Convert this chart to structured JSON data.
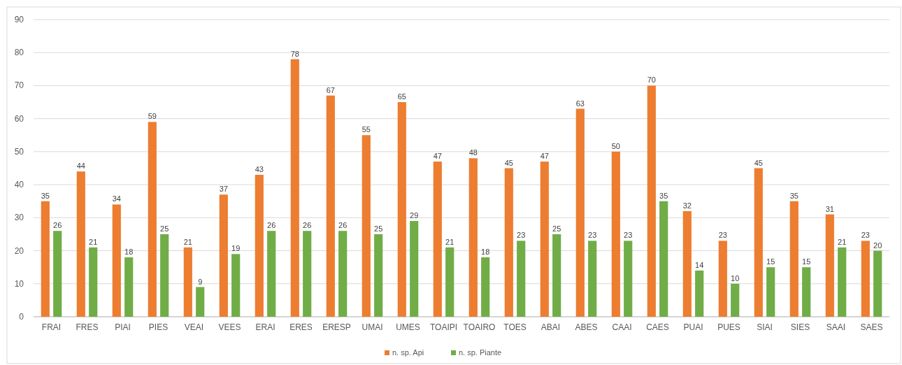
{
  "chart_data": {
    "type": "bar",
    "categories": [
      "FRAI",
      "FRES",
      "PIAI",
      "PIES",
      "VEAI",
      "VEES",
      "ERAI",
      "ERES",
      "ERESP",
      "UMAI",
      "UMES",
      "TOAIPI",
      "TOAIRO",
      "TOES",
      "ABAI",
      "ABES",
      "CAAI",
      "CAES",
      "PUAI",
      "PUES",
      "SIAI",
      "SIES",
      "SAAI",
      "SAES"
    ],
    "series": [
      {
        "name": "n. sp. Api",
        "color": "#ed7d31",
        "values": [
          35,
          44,
          34,
          59,
          21,
          37,
          43,
          78,
          67,
          55,
          65,
          47,
          48,
          45,
          47,
          63,
          50,
          70,
          32,
          23,
          45,
          35,
          31,
          23
        ]
      },
      {
        "name": "n. sp. Piante",
        "color": "#70ad47",
        "values": [
          26,
          21,
          18,
          25,
          9,
          19,
          26,
          26,
          26,
          25,
          29,
          21,
          18,
          23,
          25,
          23,
          23,
          35,
          14,
          10,
          15,
          15,
          21,
          20
        ]
      }
    ],
    "ylim": [
      0,
      90
    ],
    "yticks": [
      0,
      10,
      20,
      30,
      40,
      50,
      60,
      70,
      80,
      90
    ],
    "grid": "y",
    "legend": "bottom",
    "data_labels": true
  }
}
